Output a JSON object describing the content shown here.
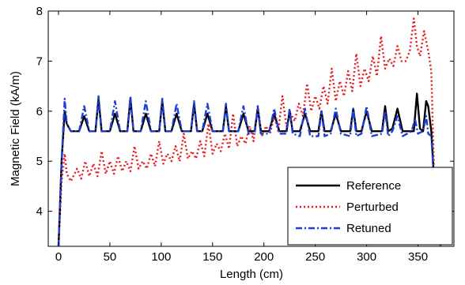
{
  "chart_data": {
    "type": "line",
    "title": "",
    "xlabel": "Length (cm)",
    "ylabel": "Magnetic Field (kA/m)",
    "xlim": [
      -10,
      385
    ],
    "ylim": [
      3.3,
      8.0
    ],
    "xticks": [
      0,
      50,
      100,
      150,
      200,
      250,
      300,
      350
    ],
    "yticks": [
      4,
      5,
      6,
      7,
      8
    ],
    "grid": false,
    "legend_position": "bottom-right",
    "series": [
      {
        "name": "Reference",
        "color": "#000000",
        "style": "solid",
        "x": [
          0,
          3,
          6,
          8,
          12,
          20,
          25,
          30,
          36,
          39,
          42,
          50,
          55,
          60,
          67,
          70,
          73,
          80,
          85,
          90,
          98,
          101,
          104,
          110,
          115,
          120,
          129,
          132,
          135,
          140,
          145,
          150,
          160,
          163,
          166,
          175,
          180,
          185,
          191,
          194,
          197,
          205,
          210,
          215,
          222,
          225,
          228,
          235,
          240,
          245,
          253,
          256,
          259,
          265,
          270,
          275,
          284,
          287,
          290,
          295,
          300,
          305,
          315,
          318,
          321,
          325,
          330,
          335,
          346,
          349,
          352,
          355,
          358,
          360,
          363,
          366,
          370,
          372
        ],
        "y": [
          3.3,
          5.0,
          6.0,
          5.75,
          5.6,
          5.6,
          5.9,
          5.6,
          5.6,
          6.25,
          5.6,
          5.6,
          5.95,
          5.6,
          5.6,
          6.25,
          5.6,
          5.6,
          5.95,
          5.6,
          5.6,
          6.2,
          5.6,
          5.6,
          5.95,
          5.6,
          5.6,
          6.15,
          5.6,
          5.6,
          5.95,
          5.6,
          5.6,
          6.1,
          5.6,
          5.6,
          5.95,
          5.6,
          5.6,
          6.05,
          5.6,
          5.6,
          5.95,
          5.6,
          5.6,
          6.0,
          5.6,
          5.6,
          5.95,
          5.6,
          5.6,
          6.0,
          5.6,
          5.6,
          5.95,
          5.6,
          5.6,
          6.05,
          5.6,
          5.6,
          6.0,
          5.6,
          5.6,
          6.1,
          5.6,
          5.65,
          6.05,
          5.6,
          5.6,
          6.35,
          5.65,
          5.6,
          6.2,
          6.1,
          5.6,
          4.5,
          3.7,
          3.3
        ]
      },
      {
        "name": "Perturbed",
        "color": "#e8191c",
        "style": "dotted",
        "x": [
          0,
          3,
          6,
          8,
          12,
          18,
          22,
          26,
          30,
          34,
          38,
          42,
          46,
          50,
          54,
          58,
          62,
          66,
          70,
          74,
          78,
          82,
          86,
          90,
          94,
          98,
          102,
          106,
          110,
          114,
          118,
          122,
          126,
          130,
          134,
          138,
          142,
          146,
          150,
          154,
          158,
          162,
          166,
          170,
          174,
          178,
          182,
          186,
          190,
          194,
          198,
          202,
          206,
          210,
          214,
          218,
          222,
          226,
          230,
          234,
          238,
          242,
          246,
          250,
          254,
          258,
          262,
          266,
          270,
          274,
          278,
          282,
          286,
          290,
          294,
          298,
          302,
          306,
          310,
          314,
          318,
          322,
          326,
          330,
          334,
          338,
          342,
          346,
          349,
          352,
          356,
          360,
          363,
          366,
          370,
          372
        ],
        "y": [
          3.3,
          4.6,
          5.15,
          4.75,
          4.6,
          4.85,
          4.65,
          5.0,
          4.7,
          4.95,
          4.7,
          5.2,
          4.75,
          5.0,
          4.75,
          5.1,
          4.8,
          5.0,
          4.8,
          5.3,
          4.85,
          5.0,
          4.85,
          5.15,
          4.9,
          5.4,
          4.95,
          5.15,
          5.0,
          5.3,
          5.0,
          5.55,
          5.05,
          5.2,
          5.05,
          5.4,
          5.1,
          5.75,
          5.15,
          5.35,
          5.2,
          5.55,
          5.25,
          5.95,
          5.3,
          5.5,
          5.35,
          5.7,
          5.4,
          6.1,
          5.5,
          5.7,
          5.55,
          5.9,
          5.6,
          6.3,
          5.7,
          5.95,
          5.8,
          6.15,
          5.9,
          6.55,
          6.0,
          6.3,
          6.05,
          6.5,
          6.15,
          6.85,
          6.2,
          6.6,
          6.3,
          6.8,
          6.4,
          7.15,
          6.5,
          6.85,
          6.6,
          7.1,
          6.7,
          7.5,
          6.85,
          7.05,
          6.9,
          7.3,
          7.0,
          7.0,
          7.2,
          7.85,
          7.3,
          7.1,
          7.6,
          7.2,
          6.8,
          4.5,
          3.7,
          3.3
        ]
      },
      {
        "name": "Retuned",
        "color": "#1f3ed8",
        "style": "dashdot",
        "x": [
          0,
          3,
          6,
          8,
          12,
          20,
          25,
          30,
          36,
          39,
          42,
          50,
          55,
          60,
          67,
          70,
          73,
          80,
          85,
          90,
          98,
          101,
          104,
          110,
          115,
          120,
          129,
          132,
          135,
          140,
          145,
          150,
          160,
          163,
          166,
          175,
          180,
          185,
          191,
          194,
          197,
          205,
          210,
          215,
          222,
          225,
          228,
          235,
          240,
          245,
          253,
          256,
          259,
          265,
          270,
          275,
          284,
          287,
          290,
          295,
          300,
          305,
          315,
          318,
          321,
          325,
          330,
          335,
          344,
          347,
          350,
          355,
          358,
          360,
          363,
          366,
          370,
          372
        ],
        "y": [
          3.3,
          5.0,
          6.25,
          5.75,
          5.6,
          5.6,
          6.1,
          5.6,
          5.6,
          6.3,
          5.6,
          5.6,
          6.2,
          5.6,
          5.6,
          6.3,
          5.6,
          5.6,
          6.2,
          5.6,
          5.6,
          6.25,
          5.6,
          5.6,
          6.15,
          5.6,
          5.6,
          6.2,
          5.6,
          5.6,
          6.15,
          5.6,
          5.6,
          6.15,
          5.6,
          5.6,
          6.1,
          5.55,
          5.55,
          6.1,
          5.55,
          5.55,
          6.05,
          5.55,
          5.55,
          6.05,
          5.55,
          5.5,
          6.05,
          5.5,
          5.5,
          6.0,
          5.5,
          5.55,
          6.05,
          5.55,
          5.5,
          6.05,
          5.5,
          5.55,
          6.1,
          5.5,
          5.55,
          6.0,
          5.5,
          5.6,
          5.9,
          5.5,
          5.6,
          5.85,
          5.55,
          5.6,
          5.9,
          5.55,
          5.5,
          4.5,
          3.7,
          3.3
        ]
      }
    ]
  }
}
